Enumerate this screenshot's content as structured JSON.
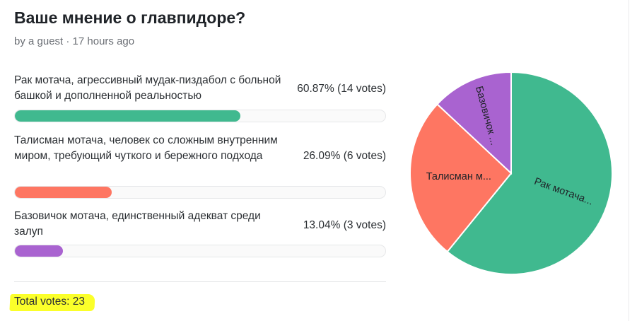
{
  "poll": {
    "title": "Ваше мнение о главпидоре?",
    "meta": "by a guest · 17 hours ago",
    "total_votes": "Total votes: 23"
  },
  "options": [
    {
      "label": "Рак мотача, агрессивный мудак-пиздабол с больной башкой и дополненной реальностью",
      "stats": "60.87% (14 votes)",
      "percent": 60.87,
      "color": "#40b98f",
      "pie_label": "Рак мотача..."
    },
    {
      "label": "Талисман мотача, человек со сложным внутренним миром, требующий чуткого и бережного подхода",
      "stats": "26.09% (6 votes)",
      "percent": 26.09,
      "color": "#fe7662",
      "pie_label": "Талисман м..."
    },
    {
      "label": "Базовичок мотача, единственный адекват среди залуп",
      "stats": "13.04% (3 votes)",
      "percent": 13.04,
      "color": "#a963d0",
      "pie_label": "Базовичок ..."
    }
  ],
  "chart_data": {
    "type": "pie",
    "categories": [
      "Рак мотача...",
      "Талисман м...",
      "Базовичок ..."
    ],
    "values": [
      14,
      6,
      3
    ],
    "colors": [
      "#40b98f",
      "#fe7662",
      "#a963d0"
    ],
    "title": ""
  }
}
